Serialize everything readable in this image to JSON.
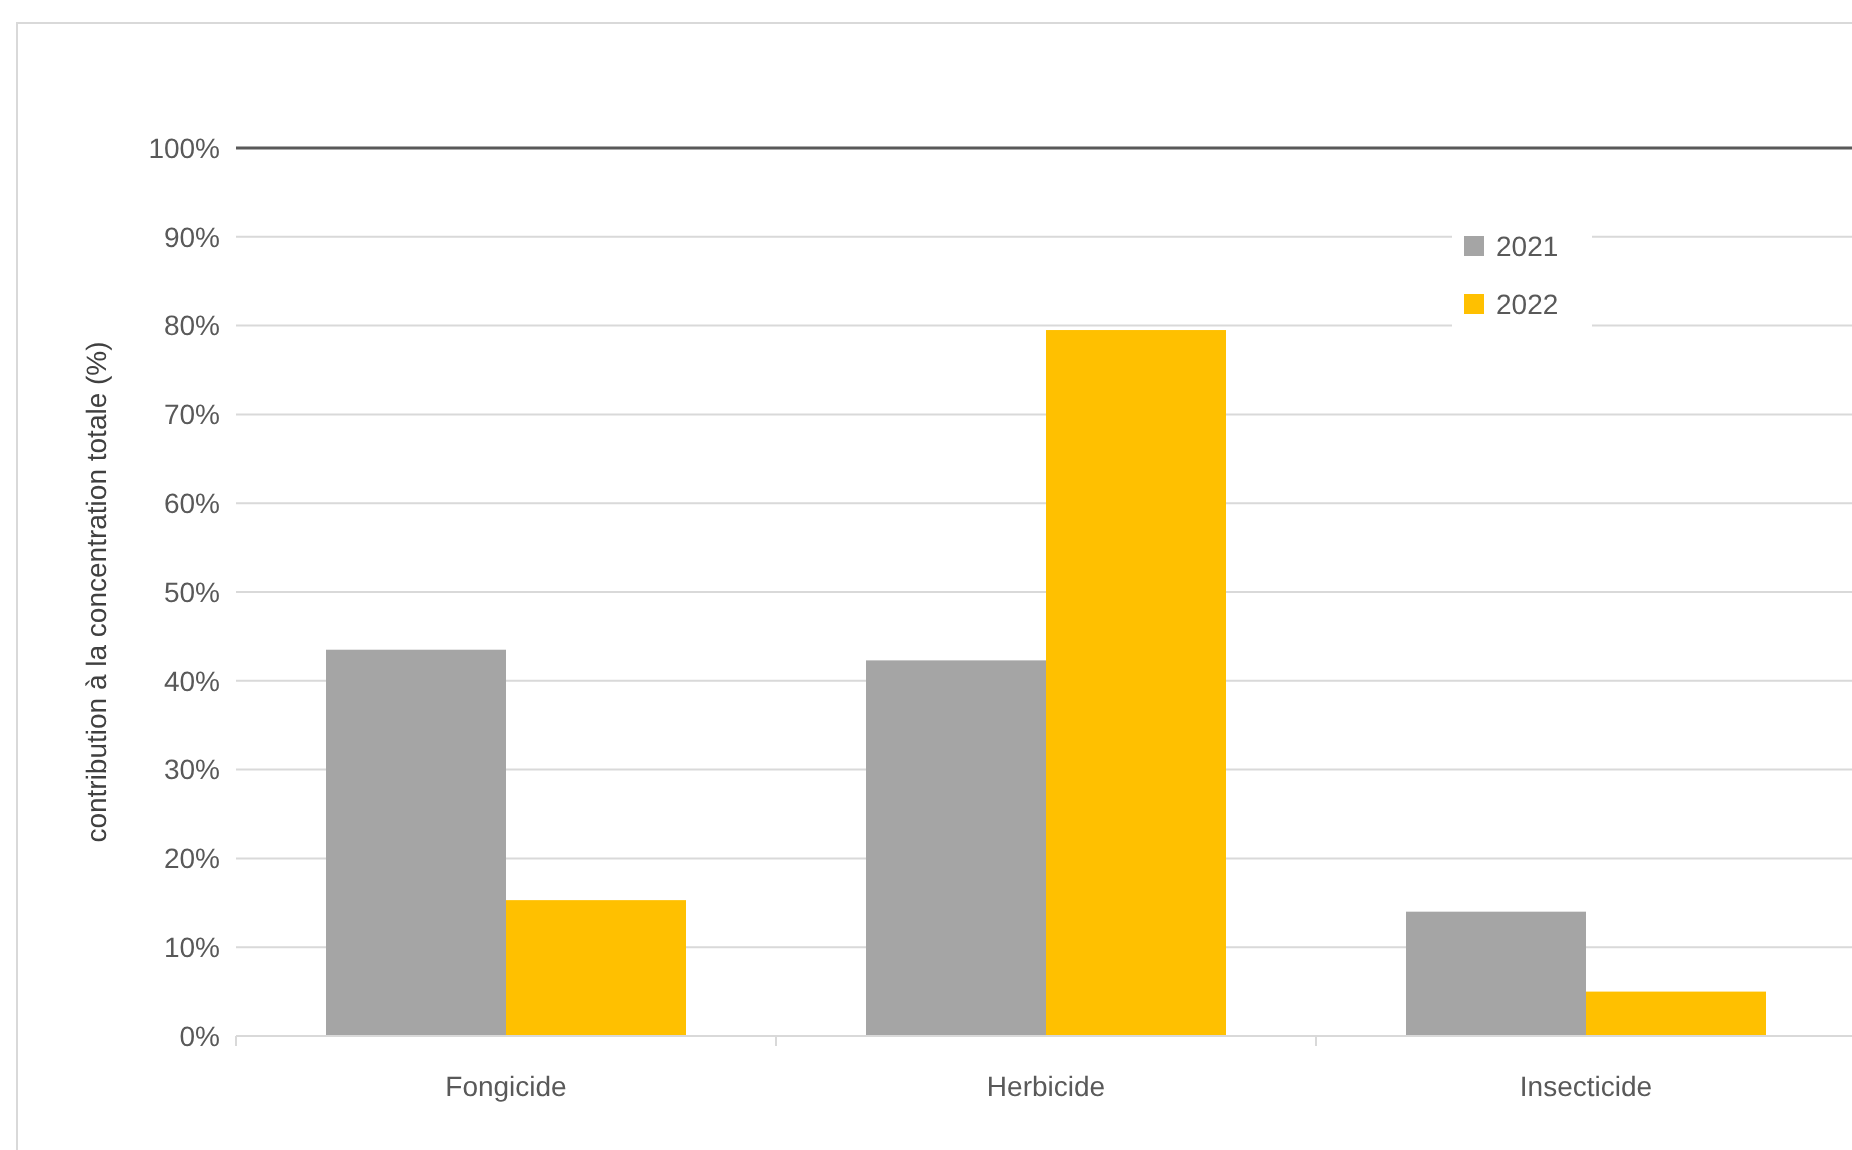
{
  "chart_data": {
    "type": "bar",
    "ylabel": "contribution à la concentration totale (%)",
    "categories": [
      "Fongicide",
      "Herbicide",
      "Insecticide"
    ],
    "series": [
      {
        "name": "2021",
        "color": "#a5a5a5",
        "values": [
          43.5,
          42.3,
          14.0
        ]
      },
      {
        "name": "2022",
        "color": "#ffc000",
        "values": [
          15.3,
          79.5,
          5.0
        ]
      }
    ],
    "ylim": [
      0,
      100
    ],
    "yticks": [
      {
        "value": 0,
        "label": "0%"
      },
      {
        "value": 10,
        "label": "10%"
      },
      {
        "value": 20,
        "label": "20%"
      },
      {
        "value": 30,
        "label": "30%"
      },
      {
        "value": 40,
        "label": "40%"
      },
      {
        "value": 50,
        "label": "50%"
      },
      {
        "value": 60,
        "label": "60%"
      },
      {
        "value": 70,
        "label": "70%"
      },
      {
        "value": 80,
        "label": "80%"
      },
      {
        "value": 90,
        "label": "90%"
      },
      {
        "value": 100,
        "label": "100%"
      }
    ],
    "grid": "y",
    "legend": "top right"
  }
}
